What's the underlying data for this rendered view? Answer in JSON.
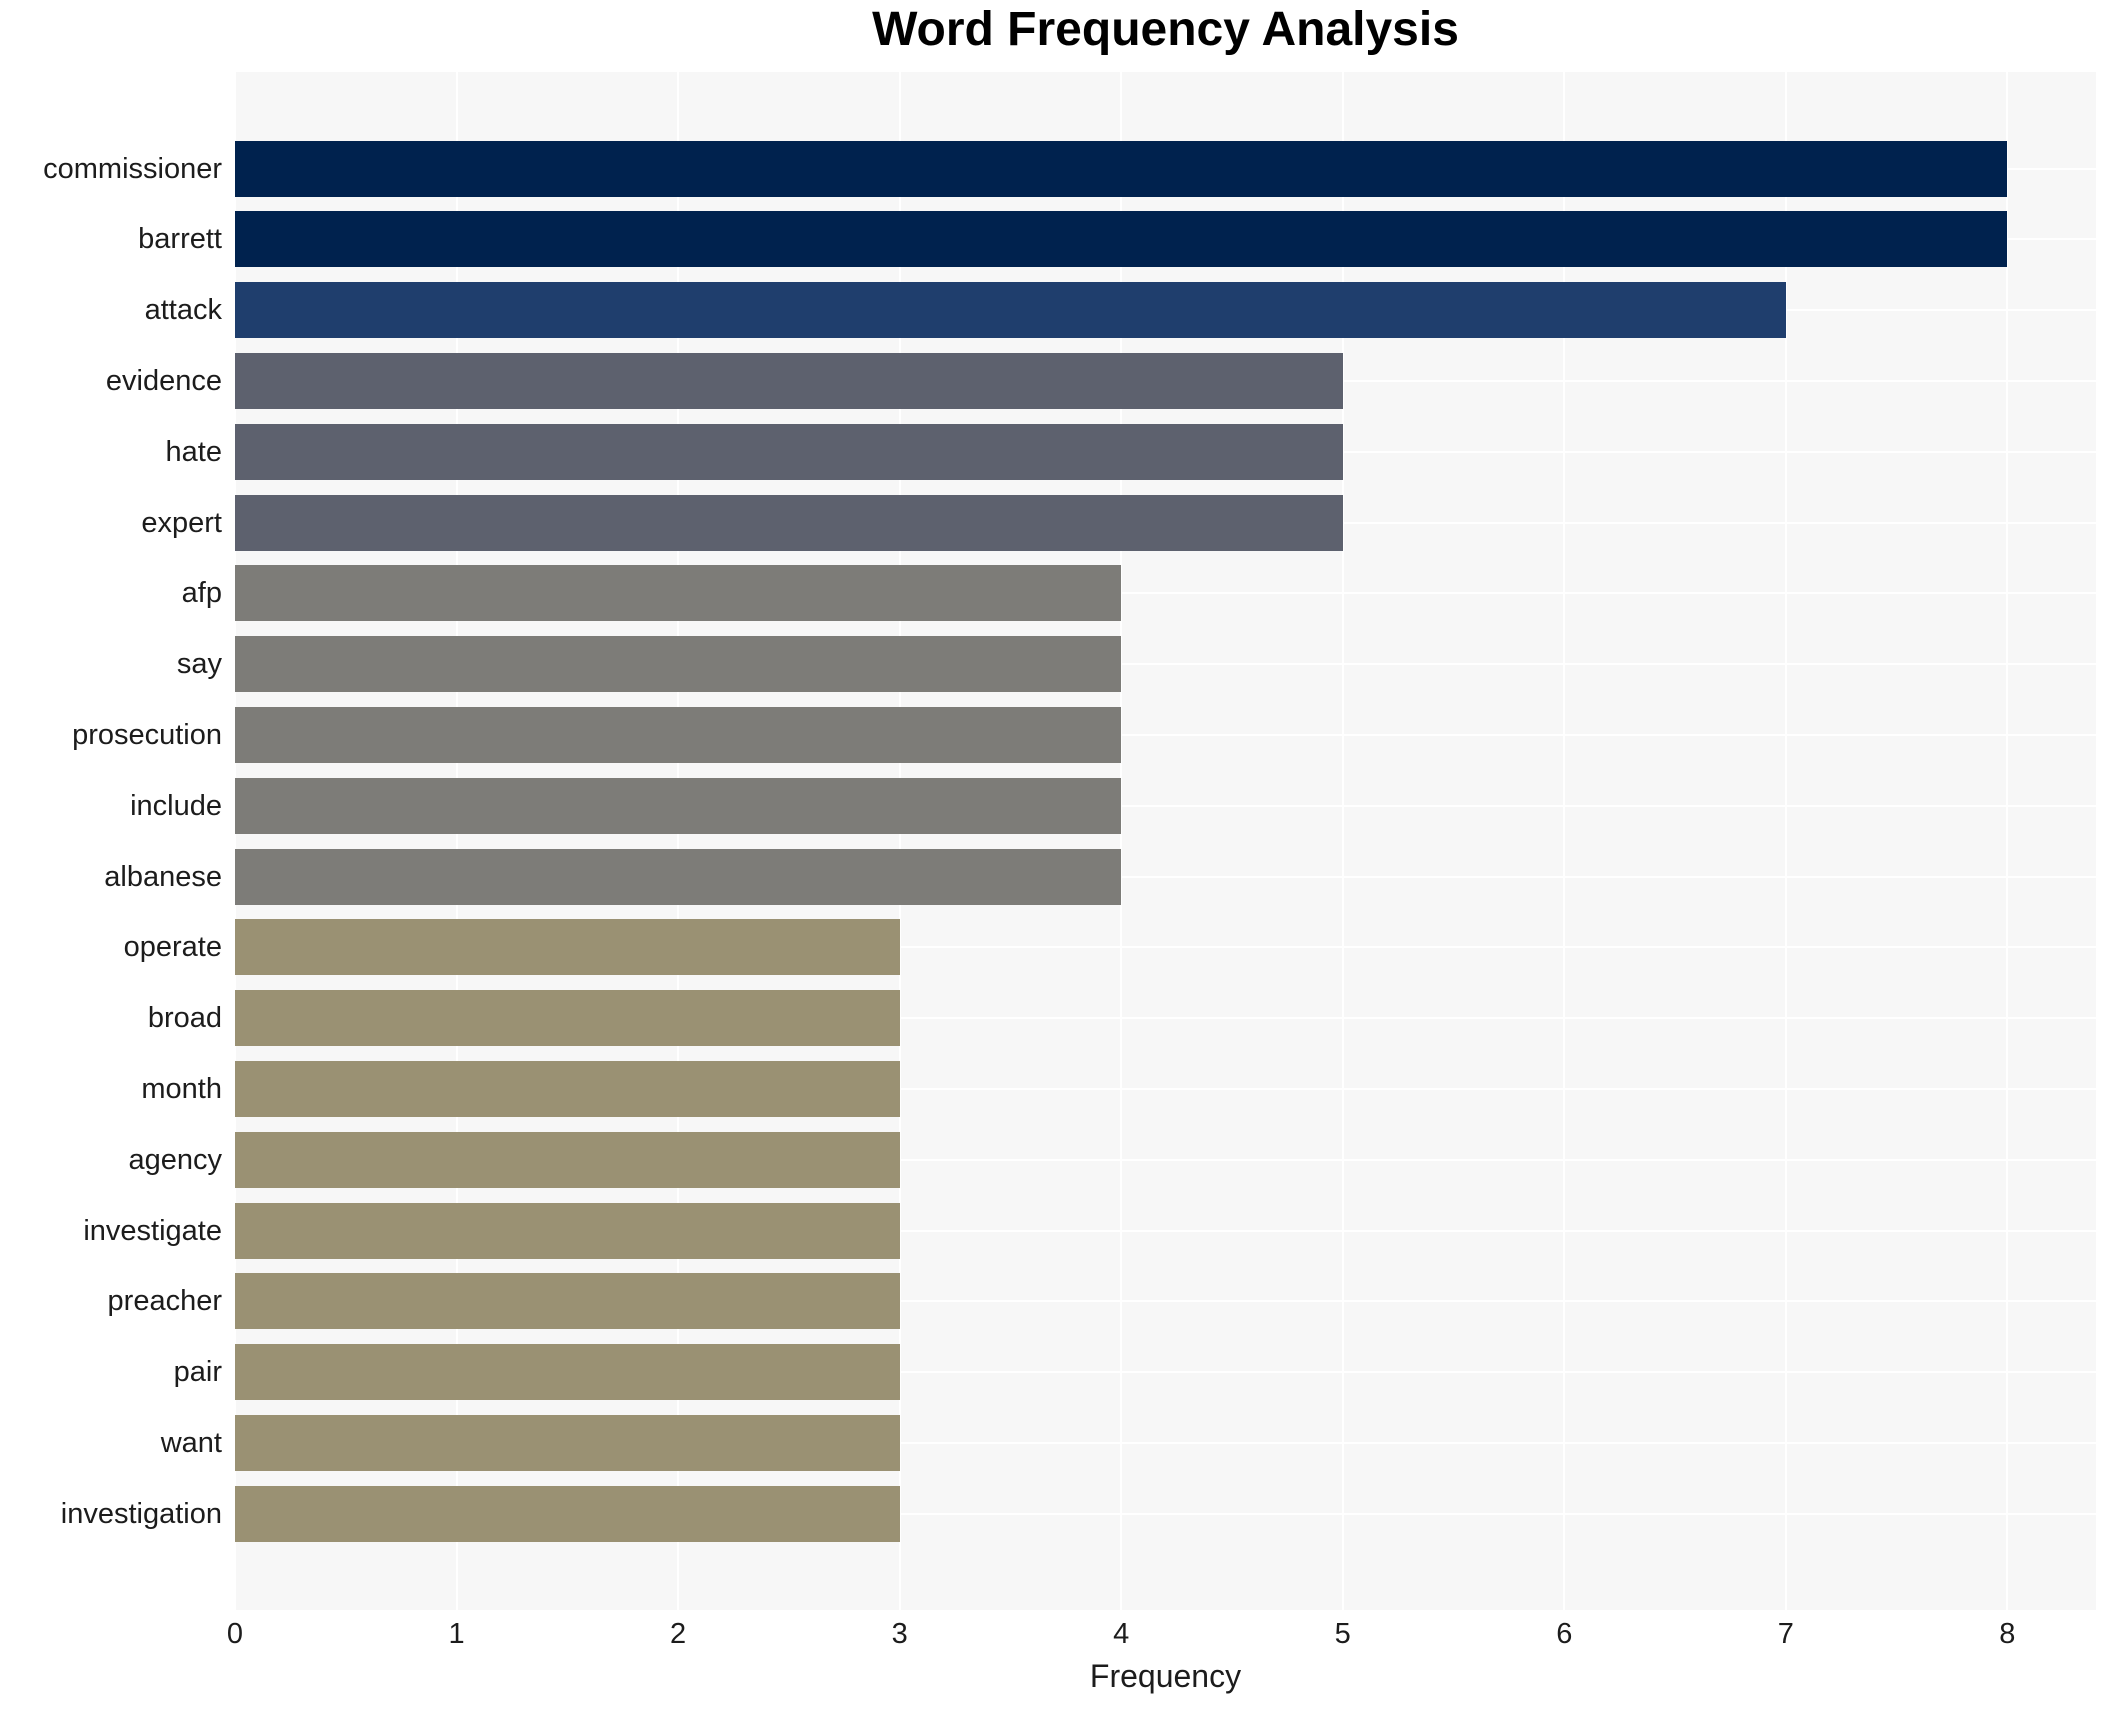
{
  "title": "Word Frequency Analysis",
  "chart_data": {
    "type": "bar",
    "orientation": "horizontal",
    "title": "Word Frequency Analysis",
    "xlabel": "Frequency",
    "ylabel": "",
    "categories": [
      "commissioner",
      "barrett",
      "attack",
      "evidence",
      "hate",
      "expert",
      "afp",
      "say",
      "prosecution",
      "include",
      "albanese",
      "operate",
      "broad",
      "month",
      "agency",
      "investigate",
      "preacher",
      "pair",
      "want",
      "investigation"
    ],
    "values": [
      8,
      8,
      7,
      5,
      5,
      5,
      4,
      4,
      4,
      4,
      4,
      3,
      3,
      3,
      3,
      3,
      3,
      3,
      3,
      3
    ],
    "xticks": [
      "0",
      "1",
      "2",
      "3",
      "4",
      "5",
      "6",
      "7",
      "8"
    ],
    "xlim": [
      0,
      8.4
    ],
    "grid": true,
    "legend": false,
    "colors": {
      "plot_background": "#f7f7f7",
      "grid_color": "#ffffff",
      "text_color": "#1c1c1c",
      "title_color": "#000000",
      "value_8": "#00224e",
      "value_7": "#1f3e6d",
      "value_5": "#5d616e",
      "value_4": "#7d7c78",
      "value_3": "#9a9173"
    }
  }
}
